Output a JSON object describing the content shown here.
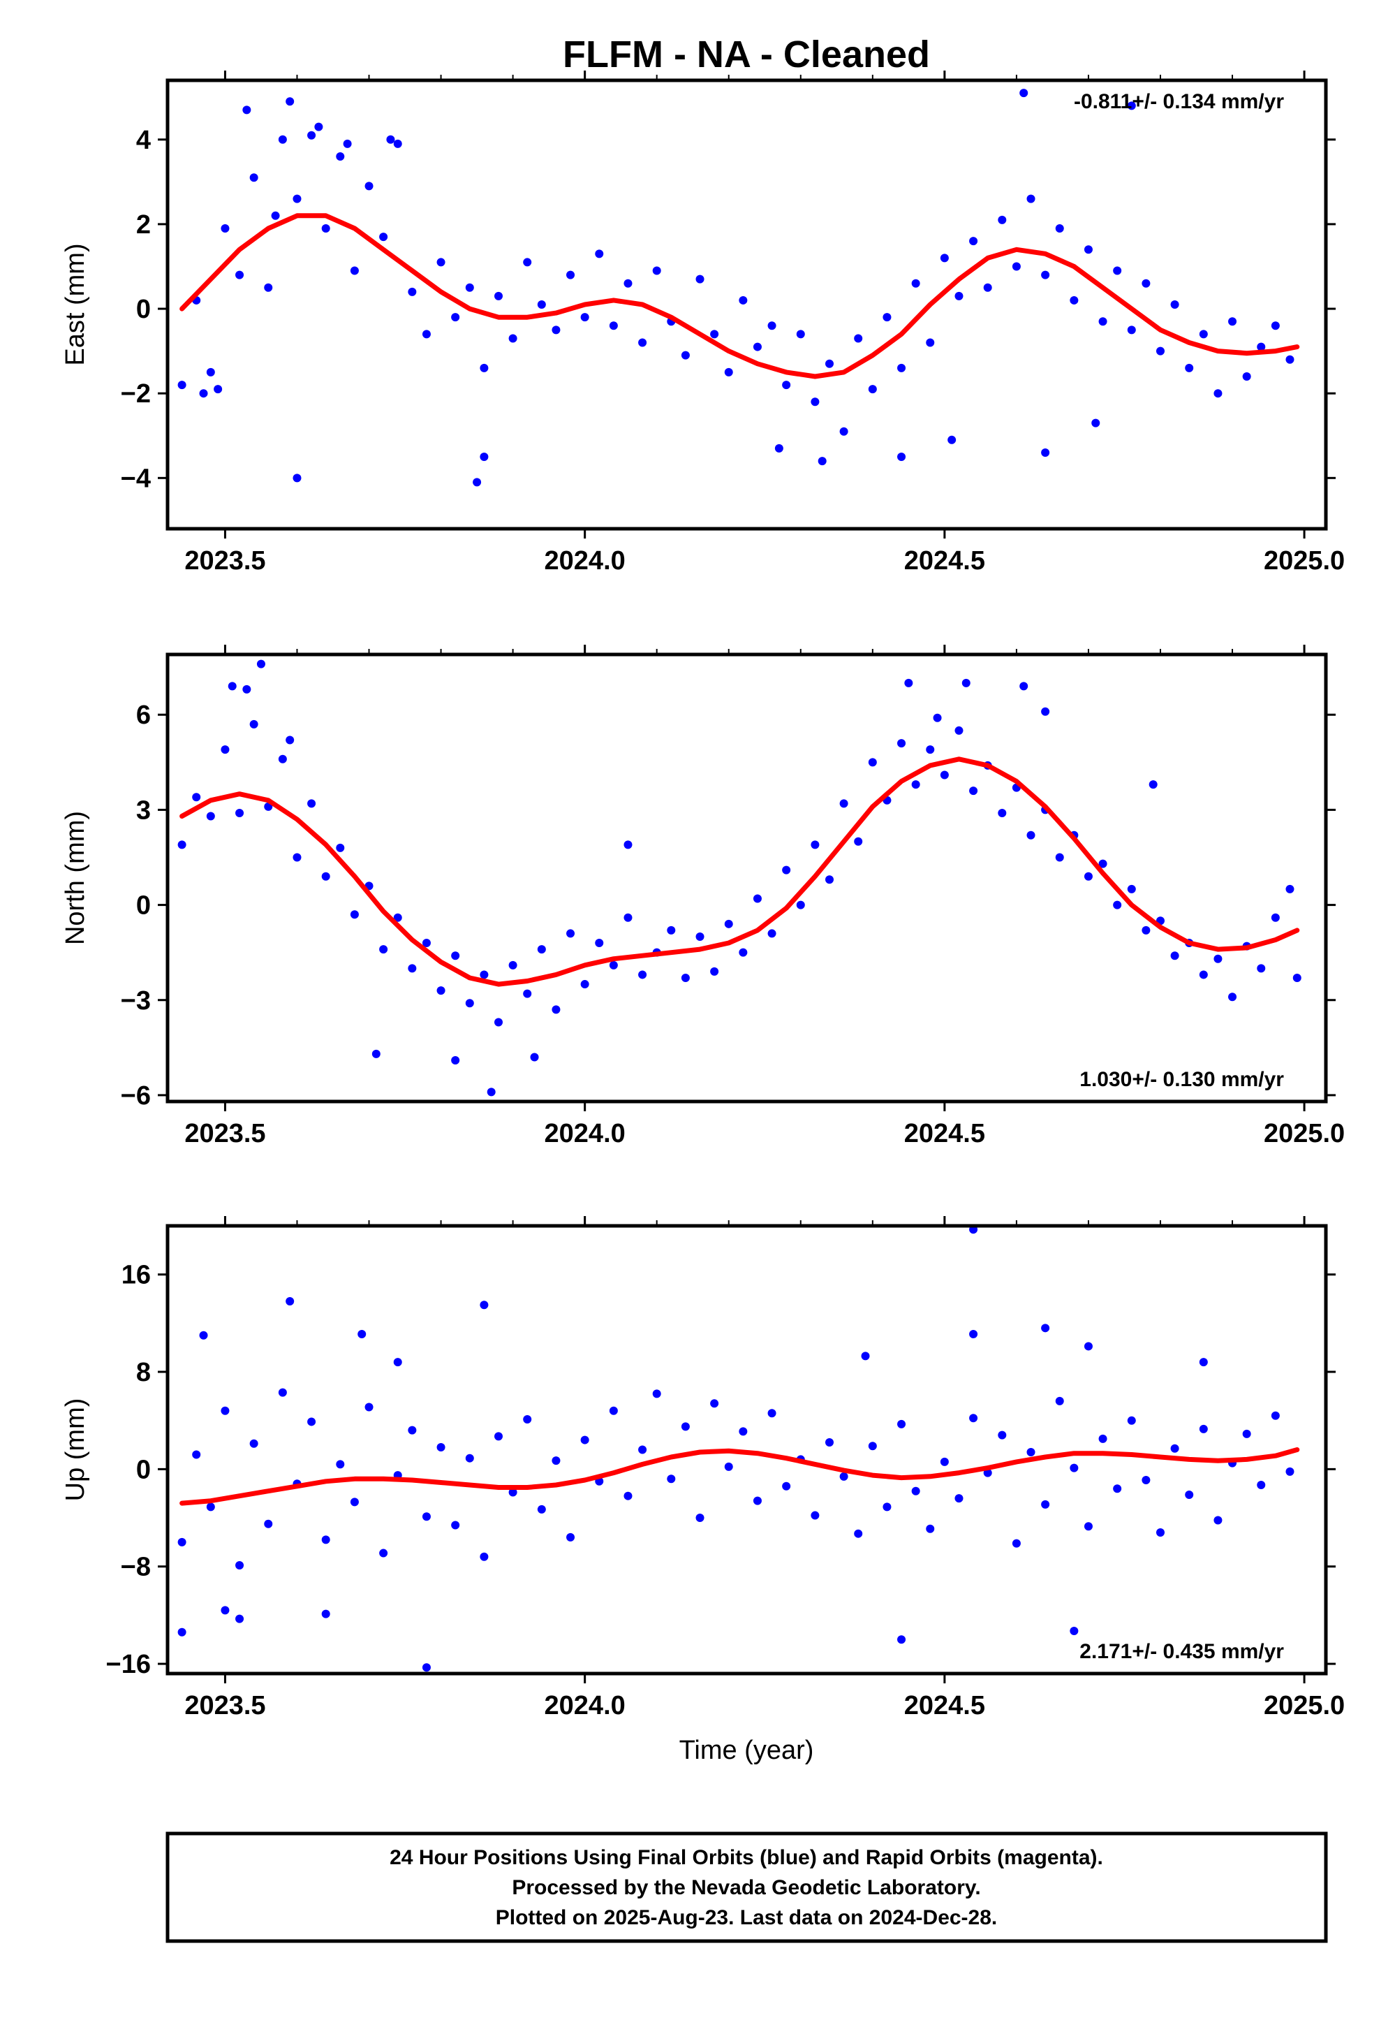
{
  "title": "FLFM  - NA - Cleaned",
  "xlabel": "Time (year)",
  "colors": {
    "final_orbits": "#0000ff",
    "model_fit": "#ff0000",
    "frame": "#000000"
  },
  "footer": {
    "line1": "24 Hour Positions Using Final Orbits (blue) and Rapid Orbits (magenta).",
    "line2": "Processed by the Nevada Geodetic Laboratory.",
    "line3": "Plotted on 2025-Aug-23. Last data on 2024-Dec-28."
  },
  "chart_data": [
    {
      "type": "scatter",
      "ylabel": "East (mm)",
      "rate_label": "-0.811+/- 0.134 mm/yr",
      "xlim": [
        2023.42,
        2025.03
      ],
      "ylim": [
        -5.2,
        5.4
      ],
      "xticks": [
        2023.5,
        2024.0,
        2024.5,
        2025.0
      ],
      "xtick_labels": [
        "2023.5",
        "2024.0",
        "2024.5",
        "2025.0"
      ],
      "yticks": [
        -4,
        -2,
        0,
        2,
        4
      ],
      "ytick_labels": [
        "−4",
        "−2",
        "0",
        "2",
        "4"
      ],
      "series": [
        {
          "kind": "points",
          "x": [
            2023.44,
            2023.46,
            2023.48,
            2023.5,
            2023.52,
            2023.54,
            2023.56,
            2023.58,
            2023.6,
            2023.62,
            2023.64,
            2023.66,
            2023.68,
            2023.7,
            2023.72,
            2023.74,
            2023.76,
            2023.78,
            2023.8,
            2023.82,
            2023.84,
            2023.86,
            2023.88,
            2023.9,
            2023.92,
            2023.94,
            2023.96,
            2023.98,
            2024.0,
            2024.02,
            2024.04,
            2024.06,
            2024.08,
            2024.1,
            2024.12,
            2024.14,
            2024.16,
            2024.18,
            2024.2,
            2024.22,
            2024.24,
            2024.26,
            2024.28,
            2024.3,
            2024.32,
            2024.34,
            2024.36,
            2024.38,
            2024.4,
            2024.42,
            2024.44,
            2024.46,
            2024.48,
            2024.5,
            2024.52,
            2024.54,
            2024.56,
            2024.58,
            2024.6,
            2024.62,
            2024.64,
            2024.66,
            2024.68,
            2024.7,
            2024.72,
            2024.74,
            2024.76,
            2024.78,
            2024.8,
            2024.82,
            2024.84,
            2024.86,
            2024.88,
            2024.9,
            2024.92,
            2024.94,
            2024.96,
            2024.98,
            2023.47,
            2023.53,
            2023.57,
            2023.63,
            2023.67,
            2023.73,
            2023.85,
            2023.6,
            2023.86,
            2024.33,
            2024.64,
            2024.51,
            2024.61,
            2024.71,
            2024.76,
            2023.49,
            2023.59,
            2024.27,
            2024.44
          ],
          "y": [
            -1.8,
            0.2,
            -1.5,
            1.9,
            0.8,
            3.1,
            0.5,
            4.0,
            2.6,
            4.1,
            1.9,
            3.6,
            0.9,
            2.9,
            1.7,
            3.9,
            0.4,
            -0.6,
            1.1,
            -0.2,
            0.5,
            -1.4,
            0.3,
            -0.7,
            1.1,
            0.1,
            -0.5,
            0.8,
            -0.2,
            1.3,
            -0.4,
            0.6,
            -0.8,
            0.9,
            -0.3,
            -1.1,
            0.7,
            -0.6,
            -1.5,
            0.2,
            -0.9,
            -0.4,
            -1.8,
            -0.6,
            -2.2,
            -1.3,
            -2.9,
            -0.7,
            -1.9,
            -0.2,
            -1.4,
            0.6,
            -0.8,
            1.2,
            0.3,
            1.6,
            0.5,
            2.1,
            1.0,
            2.6,
            0.8,
            1.9,
            0.2,
            1.4,
            -0.3,
            0.9,
            -0.5,
            0.6,
            -1.0,
            0.1,
            -1.4,
            -0.6,
            -2.0,
            -0.3,
            -1.6,
            -0.9,
            -0.4,
            -1.2,
            -2.0,
            4.7,
            2.2,
            4.3,
            3.9,
            4.0,
            -4.1,
            -4.0,
            -3.5,
            -3.6,
            -3.4,
            -3.1,
            5.1,
            -2.7,
            4.8,
            -1.9,
            4.9,
            -3.3,
            -3.5
          ]
        },
        {
          "kind": "fit",
          "x": [
            2023.44,
            2023.48,
            2023.52,
            2023.56,
            2023.6,
            2023.64,
            2023.68,
            2023.72,
            2023.76,
            2023.8,
            2023.84,
            2023.88,
            2023.92,
            2023.96,
            2024.0,
            2024.04,
            2024.08,
            2024.12,
            2024.16,
            2024.2,
            2024.24,
            2024.28,
            2024.32,
            2024.36,
            2024.4,
            2024.44,
            2024.48,
            2024.52,
            2024.56,
            2024.6,
            2024.64,
            2024.68,
            2024.72,
            2024.76,
            2024.8,
            2024.84,
            2024.88,
            2024.92,
            2024.96,
            2024.99
          ],
          "y": [
            0.0,
            0.7,
            1.4,
            1.9,
            2.2,
            2.2,
            1.9,
            1.4,
            0.9,
            0.4,
            0.0,
            -0.2,
            -0.2,
            -0.1,
            0.1,
            0.2,
            0.1,
            -0.2,
            -0.6,
            -1.0,
            -1.3,
            -1.5,
            -1.6,
            -1.5,
            -1.1,
            -0.6,
            0.1,
            0.7,
            1.2,
            1.4,
            1.3,
            1.0,
            0.5,
            0.0,
            -0.5,
            -0.8,
            -1.0,
            -1.05,
            -1.0,
            -0.9
          ]
        }
      ]
    },
    {
      "type": "scatter",
      "ylabel": "North (mm)",
      "rate_label": "1.030+/- 0.130 mm/yr",
      "xlim": [
        2023.42,
        2025.03
      ],
      "ylim": [
        -6.2,
        7.9
      ],
      "xticks": [
        2023.5,
        2024.0,
        2024.5,
        2025.0
      ],
      "xtick_labels": [
        "2023.5",
        "2024.0",
        "2024.5",
        "2025.0"
      ],
      "yticks": [
        -6,
        -3,
        0,
        3,
        6
      ],
      "ytick_labels": [
        "−6",
        "−3",
        "0",
        "3",
        "6"
      ],
      "series": [
        {
          "kind": "points",
          "x": [
            2023.44,
            2023.46,
            2023.48,
            2023.5,
            2023.52,
            2023.54,
            2023.56,
            2023.58,
            2023.6,
            2023.62,
            2023.64,
            2023.66,
            2023.68,
            2023.7,
            2023.72,
            2023.74,
            2023.76,
            2023.78,
            2023.8,
            2023.82,
            2023.84,
            2023.86,
            2023.88,
            2023.9,
            2023.92,
            2023.94,
            2023.96,
            2023.98,
            2024.0,
            2024.02,
            2024.04,
            2024.06,
            2024.08,
            2024.1,
            2024.12,
            2024.14,
            2024.16,
            2024.18,
            2024.2,
            2024.22,
            2024.24,
            2024.26,
            2024.28,
            2024.3,
            2024.32,
            2024.34,
            2024.36,
            2024.38,
            2024.4,
            2024.42,
            2024.44,
            2024.46,
            2024.48,
            2024.5,
            2024.52,
            2024.54,
            2024.56,
            2024.58,
            2024.6,
            2024.62,
            2024.64,
            2024.66,
            2024.68,
            2024.7,
            2024.72,
            2024.74,
            2024.76,
            2024.78,
            2024.8,
            2024.82,
            2024.84,
            2024.86,
            2024.88,
            2024.9,
            2024.92,
            2024.94,
            2024.96,
            2024.98,
            2023.51,
            2023.53,
            2023.55,
            2023.59,
            2023.71,
            2023.82,
            2023.87,
            2023.93,
            2024.06,
            2024.45,
            2024.49,
            2024.53,
            2024.61,
            2024.64,
            2024.79,
            2024.99
          ],
          "y": [
            1.9,
            3.4,
            2.8,
            4.9,
            2.9,
            5.7,
            3.1,
            4.6,
            1.5,
            3.2,
            0.9,
            1.8,
            -0.3,
            0.6,
            -1.4,
            -0.4,
            -2.0,
            -1.2,
            -2.7,
            -1.6,
            -3.1,
            -2.2,
            -3.7,
            -1.9,
            -2.8,
            -1.4,
            -3.3,
            -0.9,
            -2.5,
            -1.2,
            -1.9,
            -0.4,
            -2.2,
            -1.5,
            -0.8,
            -2.3,
            -1.0,
            -2.1,
            -0.6,
            -1.5,
            0.2,
            -0.9,
            1.1,
            0.0,
            1.9,
            0.8,
            3.2,
            2.0,
            4.5,
            3.3,
            5.1,
            3.8,
            4.9,
            4.1,
            5.5,
            3.6,
            4.4,
            2.9,
            3.7,
            2.2,
            3.0,
            1.5,
            2.2,
            0.9,
            1.3,
            0.0,
            0.5,
            -0.8,
            -0.5,
            -1.6,
            -1.2,
            -2.2,
            -1.7,
            -2.9,
            -1.3,
            -2.0,
            -0.4,
            0.5,
            6.9,
            6.8,
            7.6,
            5.2,
            -4.7,
            -4.9,
            -5.9,
            -4.8,
            1.9,
            7.0,
            5.9,
            7.0,
            6.9,
            6.1,
            3.8,
            -2.3
          ]
        },
        {
          "kind": "fit",
          "x": [
            2023.44,
            2023.48,
            2023.52,
            2023.56,
            2023.6,
            2023.64,
            2023.68,
            2023.72,
            2023.76,
            2023.8,
            2023.84,
            2023.88,
            2023.92,
            2023.96,
            2024.0,
            2024.04,
            2024.08,
            2024.12,
            2024.16,
            2024.2,
            2024.24,
            2024.28,
            2024.32,
            2024.36,
            2024.4,
            2024.44,
            2024.48,
            2024.52,
            2024.56,
            2024.6,
            2024.64,
            2024.68,
            2024.72,
            2024.76,
            2024.8,
            2024.84,
            2024.88,
            2024.92,
            2024.96,
            2024.99
          ],
          "y": [
            2.8,
            3.3,
            3.5,
            3.3,
            2.7,
            1.9,
            0.9,
            -0.2,
            -1.1,
            -1.8,
            -2.3,
            -2.5,
            -2.4,
            -2.2,
            -1.9,
            -1.7,
            -1.6,
            -1.5,
            -1.4,
            -1.2,
            -0.8,
            -0.1,
            0.9,
            2.0,
            3.1,
            3.9,
            4.4,
            4.6,
            4.4,
            3.9,
            3.1,
            2.1,
            1.0,
            0.0,
            -0.7,
            -1.2,
            -1.4,
            -1.35,
            -1.1,
            -0.8
          ]
        }
      ]
    },
    {
      "type": "scatter",
      "ylabel": "Up (mm)",
      "rate_label": "2.171+/- 0.435 mm/yr",
      "xlim": [
        2023.42,
        2025.03
      ],
      "ylim": [
        -16.8,
        20.0
      ],
      "xticks": [
        2023.5,
        2024.0,
        2024.5,
        2025.0
      ],
      "xtick_labels": [
        "2023.5",
        "2024.0",
        "2024.5",
        "2025.0"
      ],
      "yticks": [
        -16,
        -8,
        0,
        8,
        16
      ],
      "ytick_labels": [
        "−16",
        "−8",
        "0",
        "8",
        "16"
      ],
      "series": [
        {
          "kind": "points",
          "x": [
            2023.44,
            2023.46,
            2023.48,
            2023.5,
            2023.52,
            2023.54,
            2023.56,
            2023.58,
            2023.6,
            2023.62,
            2023.64,
            2023.66,
            2023.68,
            2023.7,
            2023.72,
            2023.74,
            2023.76,
            2023.78,
            2023.8,
            2023.82,
            2023.84,
            2023.86,
            2023.88,
            2023.9,
            2023.92,
            2023.94,
            2023.96,
            2023.98,
            2024.0,
            2024.02,
            2024.04,
            2024.06,
            2024.08,
            2024.1,
            2024.12,
            2024.14,
            2024.16,
            2024.18,
            2024.2,
            2024.22,
            2024.24,
            2024.26,
            2024.28,
            2024.3,
            2024.32,
            2024.34,
            2024.36,
            2024.38,
            2024.4,
            2024.42,
            2024.44,
            2024.46,
            2024.48,
            2024.5,
            2024.52,
            2024.54,
            2024.56,
            2024.58,
            2024.6,
            2024.62,
            2024.64,
            2024.66,
            2024.68,
            2024.7,
            2024.72,
            2024.74,
            2024.76,
            2024.78,
            2024.8,
            2024.82,
            2024.84,
            2024.86,
            2024.88,
            2024.9,
            2024.92,
            2024.94,
            2024.96,
            2024.98,
            2023.44,
            2023.47,
            2023.5,
            2023.52,
            2023.59,
            2023.64,
            2023.69,
            2023.74,
            2023.78,
            2023.86,
            2024.39,
            2024.44,
            2024.54,
            2024.64,
            2024.68,
            2024.7,
            2024.86,
            2024.54
          ],
          "y": [
            -6.0,
            1.2,
            -3.1,
            4.8,
            -7.9,
            2.1,
            -4.5,
            6.3,
            -1.2,
            3.9,
            -5.8,
            0.4,
            -2.7,
            5.1,
            -6.9,
            -0.5,
            3.2,
            -3.9,
            1.8,
            -4.6,
            0.9,
            -7.2,
            2.7,
            -1.9,
            4.1,
            -3.3,
            0.7,
            -5.6,
            2.4,
            -1.0,
            4.8,
            -2.2,
            1.6,
            6.2,
            -0.8,
            3.5,
            -4.0,
            5.4,
            0.2,
            3.1,
            -2.6,
            4.6,
            -1.4,
            0.8,
            -3.8,
            2.2,
            -0.6,
            -5.3,
            1.9,
            -3.1,
            3.7,
            -1.8,
            -4.9,
            0.6,
            -2.4,
            4.2,
            -0.3,
            2.8,
            -6.1,
            1.4,
            -2.9,
            5.6,
            0.1,
            -4.7,
            2.5,
            -1.6,
            4.0,
            -0.9,
            -5.2,
            1.7,
            -2.1,
            3.3,
            -4.2,
            0.5,
            2.9,
            -1.3,
            4.4,
            -0.2,
            -13.4,
            11.0,
            -11.6,
            -12.3,
            13.8,
            -11.9,
            11.1,
            8.8,
            -16.3,
            13.5,
            9.3,
            -14.0,
            19.7,
            11.6,
            -13.3,
            10.1,
            8.8,
            11.1
          ]
        },
        {
          "kind": "fit",
          "x": [
            2023.44,
            2023.48,
            2023.52,
            2023.56,
            2023.6,
            2023.64,
            2023.68,
            2023.72,
            2023.76,
            2023.8,
            2023.84,
            2023.88,
            2023.92,
            2023.96,
            2024.0,
            2024.04,
            2024.08,
            2024.12,
            2024.16,
            2024.2,
            2024.24,
            2024.28,
            2024.32,
            2024.36,
            2024.4,
            2024.44,
            2024.48,
            2024.52,
            2024.56,
            2024.6,
            2024.64,
            2024.68,
            2024.72,
            2024.76,
            2024.8,
            2024.84,
            2024.88,
            2024.92,
            2024.96,
            2024.99
          ],
          "y": [
            -2.8,
            -2.6,
            -2.2,
            -1.8,
            -1.4,
            -1.0,
            -0.8,
            -0.8,
            -0.9,
            -1.1,
            -1.3,
            -1.5,
            -1.5,
            -1.3,
            -0.9,
            -0.3,
            0.4,
            1.0,
            1.4,
            1.5,
            1.3,
            0.9,
            0.4,
            -0.1,
            -0.5,
            -0.7,
            -0.6,
            -0.3,
            0.1,
            0.6,
            1.0,
            1.3,
            1.3,
            1.2,
            1.0,
            0.8,
            0.7,
            0.8,
            1.1,
            1.6
          ]
        }
      ]
    }
  ]
}
